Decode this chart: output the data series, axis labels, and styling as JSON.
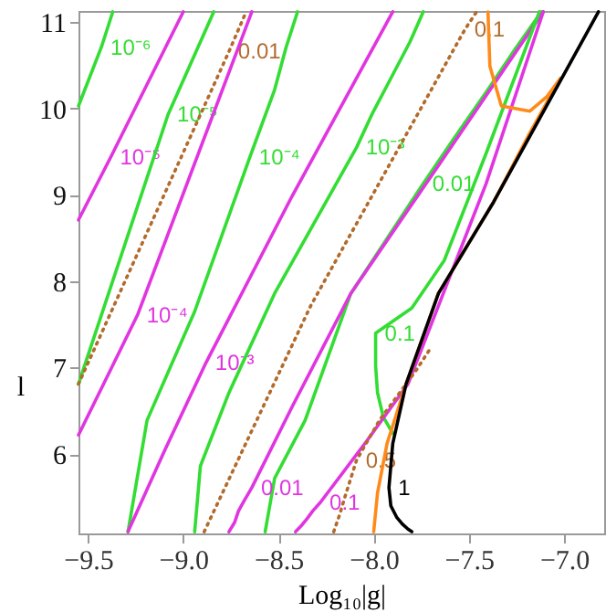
{
  "chart_data": {
    "type": "line",
    "xlabel": "Log₁₀|g|",
    "ylabel": "l",
    "xlim": [
      -9.55,
      -6.79
    ],
    "ylim": [
      5.08,
      11.13
    ],
    "xticks": [
      -9.5,
      {
        "value": -9,
        "label": "−9.0"
      },
      -8.5,
      {
        "value": -8,
        "label": "−8.0"
      },
      -7.5,
      {
        "value": -7,
        "label": "−7.0"
      }
    ],
    "yticks": [
      6,
      7,
      8,
      9,
      10,
      11
    ],
    "grid": false,
    "marker": "none",
    "series": [
      {
        "name": "10⁻⁶",
        "color": "#33dd33",
        "x": [
          -9.55,
          -9.43,
          -9.37
        ],
        "values": [
          10.03,
          10.71,
          11.12
        ]
      },
      {
        "name": "10⁻⁵",
        "color": "#e035e0",
        "x": [
          -9.55,
          -9.38,
          -9.0
        ],
        "values": [
          8.71,
          9.44,
          11.12
        ]
      },
      {
        "name": "10⁻⁵",
        "color": "#33dd33",
        "x": [
          -9.55,
          -9.08,
          -8.84
        ],
        "values": [
          6.81,
          9.93,
          11.12
        ]
      },
      {
        "name": "0.01",
        "color": "#b36b2d",
        "line_style": "dotted",
        "x": [
          -9.55,
          -8.76,
          -8.67
        ],
        "values": [
          6.81,
          10.66,
          11.12
        ]
      },
      {
        "name": "10⁻⁴",
        "color": "#e035e0",
        "x": [
          -9.55,
          -9.24,
          -8.64
        ],
        "values": [
          6.22,
          7.61,
          11.12
        ]
      },
      {
        "name": "10⁻⁴",
        "color": "#33dd33",
        "x": [
          -9.29,
          -9.19,
          -8.94,
          -8.65,
          -8.52,
          -8.46,
          -8.4
        ],
        "values": [
          5.1,
          6.39,
          7.65,
          9.44,
          10.22,
          10.71,
          11.12
        ]
      },
      {
        "name": "10⁻³",
        "color": "#e035e0",
        "x": [
          -9.29,
          -9.1,
          -8.88,
          -8.43,
          -7.9
        ],
        "values": [
          5.1,
          6.03,
          7.06,
          8.98,
          11.12
        ]
      },
      {
        "name": "10⁻³",
        "color": "#33dd33",
        "x": [
          -8.94,
          -8.91,
          -8.76,
          -8.52,
          -8.09,
          -8.01,
          -7.91,
          -7.81,
          -7.74
        ],
        "values": [
          5.1,
          5.86,
          6.71,
          7.86,
          9.55,
          9.93,
          10.35,
          10.77,
          11.12
        ]
      },
      {
        "name": "0.1",
        "color": "#b36b2d",
        "line_style": "dotted",
        "x": [
          -8.89,
          -8.33,
          -7.52,
          -7.49,
          -7.46
        ],
        "values": [
          5.1,
          7.72,
          10.92,
          11.02,
          11.12
        ]
      },
      {
        "name": "0.01",
        "color": "#33dd33",
        "x": [
          -8.57,
          -8.52,
          -8.36,
          -8.12,
          -7.74,
          -7.58,
          -7.4,
          -7.26,
          -7.12
        ],
        "values": [
          5.1,
          5.72,
          6.39,
          7.86,
          9.13,
          9.65,
          10.22,
          10.68,
          11.12
        ]
      },
      {
        "name": "0.01",
        "color": "#e035e0",
        "x": [
          -8.76,
          -8.73,
          -8.71,
          -8.68,
          -8.64,
          -8.43,
          -8.12,
          -7.66,
          -7.11
        ],
        "values": [
          5.1,
          5.21,
          5.34,
          5.46,
          5.61,
          6.54,
          7.86,
          9.34,
          11.12
        ]
      },
      {
        "name": "0.1",
        "color": "#33dd33",
        "x": [
          -7.13,
          -7.41,
          -7.63,
          -7.8,
          -7.99,
          -7.99,
          -7.98,
          -7.95,
          -7.9
        ],
        "values": [
          11.12,
          9.48,
          8.24,
          7.69,
          7.4,
          7.02,
          6.71,
          6.43,
          6.24
        ]
      },
      {
        "name": "0.1",
        "color": "#e035e0",
        "x": [
          -8.41,
          -8.38,
          -8.35,
          -8.32,
          -8.28,
          -8.04,
          -7.82,
          -7.41,
          -7.11
        ],
        "values": [
          5.1,
          5.17,
          5.25,
          5.34,
          5.44,
          6.14,
          6.81,
          9.13,
          11.12
        ]
      },
      {
        "name": "0.5",
        "color": "#b36b2d",
        "line_style": "dotted",
        "x": [
          -8.21,
          -8.18,
          -8.15,
          -8.12,
          -8.09,
          -7.97,
          -7.85,
          -7.78,
          -7.7
        ],
        "values": [
          5.1,
          5.29,
          5.51,
          5.72,
          5.93,
          6.39,
          6.75,
          6.96,
          7.23
        ]
      },
      {
        "color": "#ff8a1a",
        "x": [
          -7.4,
          -7.39,
          -7.33,
          -7.18,
          -7.09,
          -7.02,
          -7.18,
          -7.37,
          -7.66,
          -7.83,
          -7.93,
          -7.98,
          -8.0
        ],
        "values": [
          11.12,
          10.49,
          10.03,
          9.97,
          10.14,
          10.35,
          9.72,
          8.92,
          7.86,
          6.81,
          6.12,
          5.55,
          5.1
        ]
      },
      {
        "name": "1",
        "color": "#000000",
        "x": [
          -6.82,
          -7.37,
          -7.66,
          -7.83,
          -7.9,
          -7.92,
          -7.91,
          -7.88,
          -7.85,
          -7.82,
          -7.8
        ],
        "values": [
          11.12,
          8.92,
          7.86,
          6.81,
          6.12,
          5.61,
          5.4,
          5.27,
          5.19,
          5.13,
          5.1
        ]
      }
    ]
  }
}
